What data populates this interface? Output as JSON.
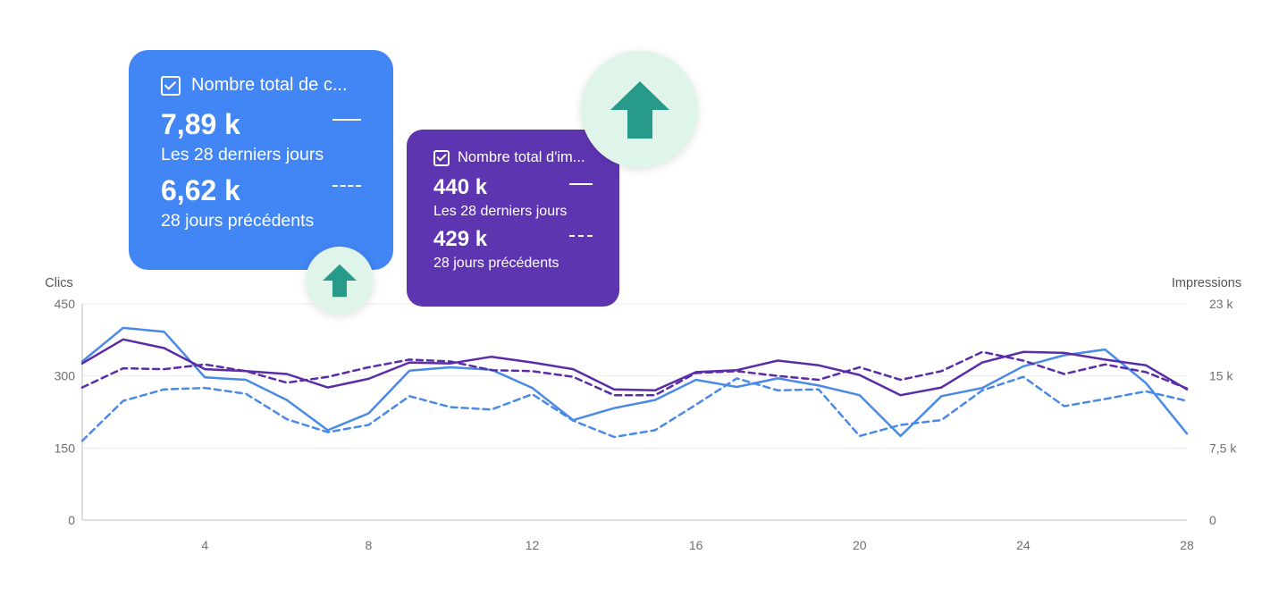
{
  "colors": {
    "clicks_card": "#4285f4",
    "impressions_card": "#5e35b1",
    "clicks_line": "#4a8ae6",
    "impressions_line": "#5a2ca8",
    "arrow": "#279a8a",
    "arrow_bg": "#e0f5e9",
    "grid": "#ececec",
    "axis_text": "#6f6f6f"
  },
  "cards": {
    "clicks": {
      "title": "Nombre total de c...",
      "current_value": "7,89 k",
      "current_label": "Les 28 derniers jours",
      "previous_value": "6,62 k",
      "previous_label": "28 jours précédents"
    },
    "impressions": {
      "title": "Nombre total d'im...",
      "current_value": "440 k",
      "current_label": "Les 28 derniers jours",
      "previous_value": "429 k",
      "previous_label": "28 jours précédents"
    }
  },
  "icons": {
    "checkbox": "checkbox-checked-icon",
    "arrow": "arrow-up-icon"
  },
  "chart_data": {
    "type": "line",
    "x": [
      1,
      2,
      3,
      4,
      5,
      6,
      7,
      8,
      9,
      10,
      11,
      12,
      13,
      14,
      15,
      16,
      17,
      18,
      19,
      20,
      21,
      22,
      23,
      24,
      25,
      26,
      27,
      28
    ],
    "xlim": [
      1,
      28
    ],
    "xticks": [
      "4",
      "8",
      "12",
      "16",
      "20",
      "24",
      "28"
    ],
    "xtick_values": [
      4,
      8,
      12,
      16,
      20,
      24,
      28
    ],
    "ylabel_left": "Clics",
    "ylabel_right": "Impressions",
    "ylim_left": [
      0,
      450
    ],
    "ylim_right": [
      0,
      22500
    ],
    "yticks_left": [
      "0",
      "150",
      "300",
      "450"
    ],
    "yticks_right": [
      "0",
      "7,5 k",
      "15 k",
      "23 k"
    ],
    "grid": true,
    "series": [
      {
        "axis": "left",
        "style": "solid",
        "color": "#4a8ae6",
        "values": [
          330,
          400,
          392,
          297,
          292,
          250,
          187,
          222,
          311,
          318,
          313,
          275,
          208,
          233,
          250,
          292,
          277,
          295,
          280,
          260,
          175,
          258,
          275,
          320,
          343,
          355,
          285,
          180
        ]
      },
      {
        "axis": "left",
        "style": "dashed",
        "color": "#4a8ae6",
        "values": [
          165,
          248,
          272,
          275,
          263,
          210,
          183,
          198,
          258,
          235,
          230,
          262,
          207,
          173,
          187,
          240,
          295,
          270,
          272,
          175,
          198,
          208,
          270,
          298,
          237,
          252,
          268,
          248
        ]
      },
      {
        "axis": "right",
        "style": "solid",
        "color": "#5a2ca8",
        "values": [
          16300,
          18800,
          17900,
          15700,
          15500,
          15200,
          13800,
          14700,
          16400,
          16300,
          17000,
          16400,
          15700,
          13600,
          13500,
          15400,
          15600,
          16600,
          16100,
          15100,
          13000,
          13800,
          16400,
          17500,
          17400,
          16700,
          16100,
          13600
        ]
      },
      {
        "axis": "right",
        "style": "dashed",
        "color": "#5a2ca8",
        "values": [
          13800,
          15800,
          15700,
          16200,
          15500,
          14300,
          14900,
          15900,
          16700,
          16500,
          15600,
          15500,
          14900,
          13000,
          13000,
          15300,
          15500,
          15000,
          14600,
          15900,
          14600,
          15500,
          17500,
          16600,
          15200,
          16200,
          15400,
          13700
        ]
      }
    ]
  }
}
